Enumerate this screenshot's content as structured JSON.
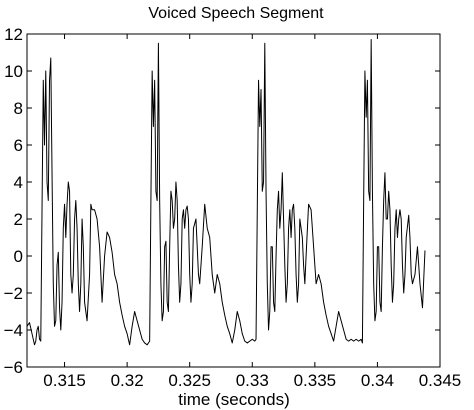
{
  "chart_data": {
    "type": "line",
    "title": "Voiced Speech Segment",
    "xlabel": "time (seconds)",
    "ylabel": "",
    "xlim": [
      0.312,
      0.345
    ],
    "ylim": [
      -6,
      12
    ],
    "xticks": [
      0.315,
      0.32,
      0.325,
      0.33,
      0.335,
      0.34,
      0.345
    ],
    "xtick_labels": [
      "0.315",
      "0.32",
      "0.325",
      "0.33",
      "0.335",
      "0.34",
      "0.345"
    ],
    "yticks": [
      -6,
      -4,
      -2,
      0,
      2,
      4,
      6,
      8,
      10,
      12
    ],
    "ytick_labels": [
      "−6",
      "−4",
      "−2",
      "0",
      "2",
      "4",
      "6",
      "8",
      "10",
      "12"
    ],
    "grid": false,
    "legend": "none",
    "line_color": "#000000",
    "series": [
      {
        "period_start_x": [
          0.3132,
          0.3219,
          0.3304,
          0.3389
        ],
        "x": [
          0.312,
          0.3122,
          0.3124,
          0.3126,
          0.3127,
          0.3128,
          0.3129,
          0.313,
          0.3131,
          0.3132,
          0.3133,
          0.3134,
          0.3135,
          0.3136,
          0.3137,
          0.3138,
          0.3139,
          0.314,
          0.3141,
          0.3142,
          0.3143,
          0.3144,
          0.3145,
          0.3146,
          0.3147,
          0.3148,
          0.3149,
          0.315,
          0.3151,
          0.3152,
          0.3153,
          0.3154,
          0.3155,
          0.3156,
          0.3157,
          0.3158,
          0.3159,
          0.316,
          0.3161,
          0.3162,
          0.3163,
          0.3164,
          0.3165,
          0.3166,
          0.3168,
          0.317,
          0.3171,
          0.3172,
          0.3174,
          0.3176,
          0.3178,
          0.318,
          0.3182,
          0.3184,
          0.3186,
          0.3188,
          0.319,
          0.3192,
          0.3194,
          0.3196,
          0.3198,
          0.32,
          0.3202,
          0.3204,
          0.3206,
          0.3208,
          0.321,
          0.3212,
          0.3214,
          0.3216,
          0.3218,
          0.3219,
          0.322,
          0.3221,
          0.3222,
          0.3223,
          0.3224,
          0.3225,
          0.3226,
          0.3227,
          0.3228,
          0.3229,
          0.323,
          0.3231,
          0.3232,
          0.3233,
          0.3234,
          0.3235,
          0.3236,
          0.3237,
          0.3238,
          0.3239,
          0.324,
          0.3241,
          0.3242,
          0.3243,
          0.3244,
          0.3245,
          0.3246,
          0.3247,
          0.3248,
          0.3249,
          0.325,
          0.3251,
          0.3252,
          0.3253,
          0.3255,
          0.3256,
          0.3257,
          0.3258,
          0.326,
          0.3262,
          0.3264,
          0.3266,
          0.3268,
          0.327,
          0.3272,
          0.3274,
          0.3276,
          0.3278,
          0.328,
          0.3282,
          0.3284,
          0.3286,
          0.3288,
          0.329,
          0.3292,
          0.3294,
          0.3296,
          0.3298,
          0.33,
          0.3302,
          0.3303,
          0.3304,
          0.3305,
          0.3306,
          0.3307,
          0.3308,
          0.3309,
          0.331,
          0.3311,
          0.3312,
          0.3313,
          0.3314,
          0.3315,
          0.3316,
          0.3317,
          0.3318,
          0.3319,
          0.332,
          0.3321,
          0.3322,
          0.3323,
          0.3324,
          0.3325,
          0.3326,
          0.3327,
          0.3328,
          0.3329,
          0.333,
          0.3331,
          0.3332,
          0.3333,
          0.3334,
          0.3335,
          0.3336,
          0.3337,
          0.3338,
          0.334,
          0.3341,
          0.3342,
          0.3343,
          0.3345,
          0.3347,
          0.3349,
          0.3351,
          0.3353,
          0.3355,
          0.3357,
          0.3359,
          0.3361,
          0.3363,
          0.3365,
          0.3367,
          0.3369,
          0.3371,
          0.3373,
          0.3375,
          0.3377,
          0.3379,
          0.3381,
          0.3383,
          0.3385,
          0.3387,
          0.3388,
          0.3389,
          0.339,
          0.3391,
          0.3392,
          0.3393,
          0.3394,
          0.3395,
          0.3396,
          0.3397,
          0.3398,
          0.3399,
          0.34,
          0.3401,
          0.3402,
          0.3403,
          0.3404,
          0.3405,
          0.3406,
          0.3407,
          0.3408,
          0.3409,
          0.341,
          0.3411,
          0.3412,
          0.3413,
          0.3414,
          0.3415,
          0.3416,
          0.3417,
          0.3418,
          0.3419,
          0.342,
          0.3421,
          0.3422,
          0.3423,
          0.3425,
          0.3426,
          0.3427,
          0.3428,
          0.343,
          0.3432,
          0.3434,
          0.3436,
          0.3438
        ],
        "y": [
          -3.8,
          -3.6,
          -4.2,
          -4.8,
          -4.6,
          -4.0,
          -3.8,
          -4.5,
          -4.6,
          2.5,
          9.5,
          6.0,
          10.0,
          4.0,
          3.0,
          9.5,
          10.7,
          4.5,
          -1.5,
          -3.8,
          -3.5,
          -0.5,
          0.2,
          -2.8,
          -4.0,
          -2.5,
          1.5,
          2.8,
          1.0,
          2.8,
          4.0,
          3.5,
          -1.0,
          -2.0,
          -1.0,
          2.0,
          3.0,
          1.5,
          -1.5,
          -3.0,
          -1.5,
          2.0,
          0.5,
          -2.5,
          -3.5,
          -1.0,
          2.8,
          2.5,
          2.5,
          2.0,
          0.5,
          -2.5,
          0.0,
          1.3,
          1.0,
          0.2,
          -1.0,
          -1.5,
          -2.5,
          -3.2,
          -3.8,
          -4.2,
          -4.8,
          -3.8,
          -3.0,
          -3.5,
          -4.0,
          -4.5,
          -4.7,
          -4.8,
          -4.6,
          3.0,
          10.0,
          7.0,
          9.5,
          3.5,
          3.0,
          11.5,
          3.0,
          -1.5,
          -3.5,
          -3.0,
          0.5,
          0.8,
          -2.5,
          -3.0,
          0.5,
          3.5,
          3.0,
          1.5,
          2.0,
          4.0,
          3.0,
          -0.5,
          -2.5,
          -1.5,
          2.0,
          2.5,
          1.5,
          2.5,
          2.7,
          2.0,
          -1.0,
          -2.5,
          -1.5,
          1.5,
          2.0,
          0.5,
          -1.0,
          -1.5,
          0.5,
          2.8,
          1.5,
          1.0,
          -1.0,
          -2.0,
          -1.0,
          -1.5,
          -2.5,
          -3.2,
          -3.8,
          -4.2,
          -4.7,
          -4.0,
          -3.0,
          -3.5,
          -4.2,
          -4.6,
          -4.7,
          -4.6,
          -4.5,
          -4.6,
          -4.5,
          2.5,
          9.5,
          7.0,
          9.0,
          3.5,
          4.0,
          11.5,
          3.5,
          -1.5,
          -4.0,
          -3.0,
          0.5,
          0.5,
          -2.5,
          -3.0,
          0.0,
          2.5,
          3.5,
          1.5,
          2.5,
          4.5,
          2.0,
          -0.5,
          -2.5,
          -1.5,
          1.5,
          2.5,
          1.0,
          2.5,
          2.8,
          1.5,
          -1.0,
          -2.5,
          -1.5,
          2.0,
          1.0,
          -0.5,
          -1.5,
          0.0,
          2.8,
          2.5,
          0.5,
          -1.5,
          -1.0,
          -1.5,
          -2.5,
          -3.2,
          -3.8,
          -4.2,
          -4.6,
          -3.8,
          -3.0,
          -3.5,
          -4.0,
          -4.5,
          -4.6,
          -4.5,
          -4.6,
          -4.5,
          -4.6,
          -4.5,
          -4.7,
          3.0,
          10.0,
          7.5,
          9.5,
          3.5,
          3.0,
          11.7,
          3.5,
          -1.5,
          -3.5,
          -3.0,
          0.5,
          0.5,
          -2.5,
          -3.0,
          0.5,
          3.0,
          4.5,
          2.0,
          2.0,
          3.5,
          2.5,
          -0.5,
          -2.5,
          -1.5,
          1.5,
          2.5,
          1.0,
          2.0,
          2.5,
          2.0,
          -0.5,
          -2.0,
          -1.0,
          1.0,
          2.2,
          1.0,
          -1.0,
          -1.5,
          -1.0,
          0.5,
          -1.5,
          -2.8,
          0.3
        ]
      }
    ]
  }
}
